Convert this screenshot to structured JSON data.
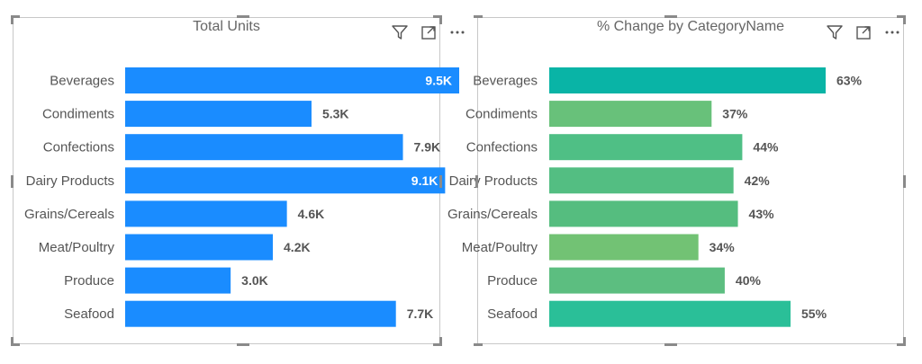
{
  "charts": [
    {
      "title": "Total Units",
      "value_format": "K",
      "bar_color": "#1a8cff",
      "chart_data": {
        "type": "bar",
        "orientation": "horizontal",
        "title": "Total Units",
        "categories": [
          "Beverages",
          "Condiments",
          "Confections",
          "Dairy Products",
          "Grains/Cereals",
          "Meat/Poultry",
          "Produce",
          "Seafood"
        ],
        "values": [
          9500,
          5300,
          7900,
          9100,
          4600,
          4200,
          3000,
          7700
        ],
        "data_labels": [
          "9.5K",
          "5.3K",
          "7.9K",
          "9.1K",
          "4.6K",
          "4.2K",
          "3.0K",
          "7.7K"
        ],
        "xlim": [
          0,
          9500
        ],
        "grid": false,
        "legend": "none"
      }
    },
    {
      "title": "% Change by CategoryName",
      "value_format": "%",
      "bar_colors": [
        "#09b4a6",
        "#68c17a",
        "#4fbf85",
        "#53be82",
        "#55bd7f",
        "#72c274",
        "#5cbe80",
        "#2abf98"
      ],
      "chart_data": {
        "type": "bar",
        "orientation": "horizontal",
        "title": "% Change by CategoryName",
        "categories": [
          "Beverages",
          "Condiments",
          "Confections",
          "Dairy Products",
          "Grains/Cereals",
          "Meat/Poultry",
          "Produce",
          "Seafood"
        ],
        "values": [
          63,
          37,
          44,
          42,
          43,
          34,
          40,
          55
        ],
        "data_labels": [
          "63%",
          "37%",
          "44%",
          "42%",
          "43%",
          "34%",
          "40%",
          "55%"
        ],
        "xlim": [
          0,
          63
        ],
        "grid": false,
        "legend": "none"
      }
    }
  ],
  "icons": {
    "filter": "filter-icon",
    "focus": "focus-mode-icon",
    "more": "more-options-icon"
  }
}
